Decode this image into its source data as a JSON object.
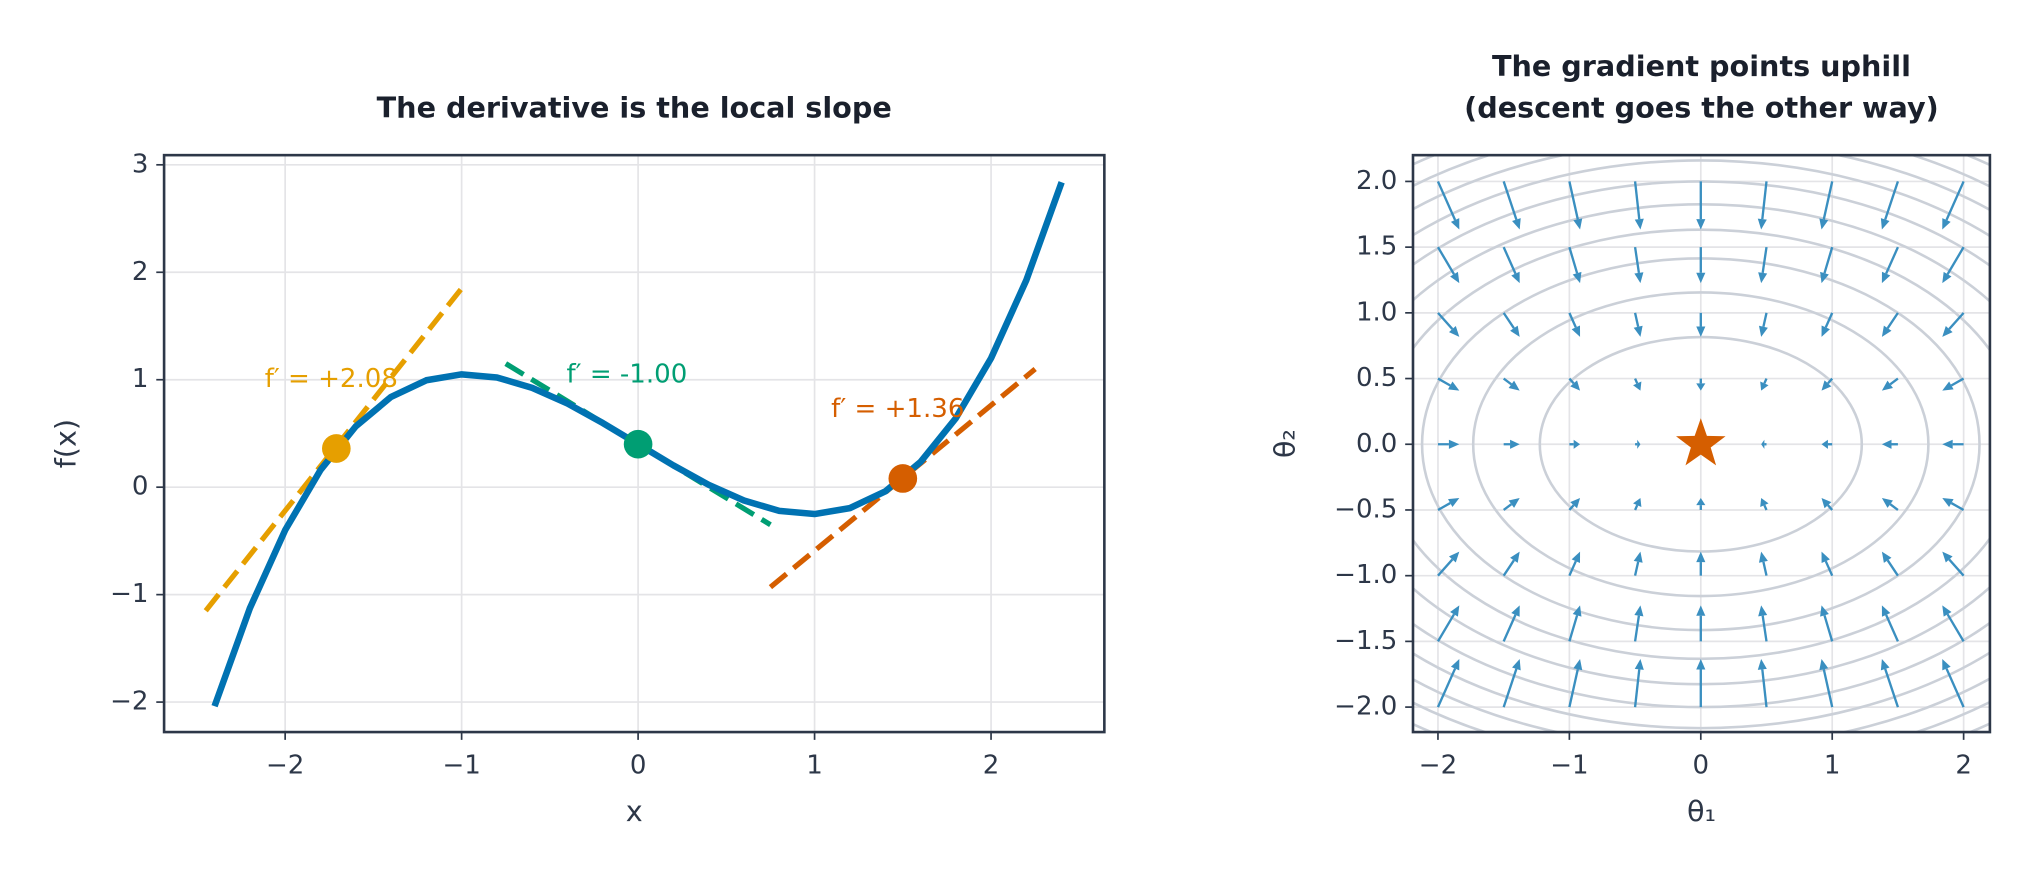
{
  "chart_data": [
    {
      "type": "line",
      "title": "The derivative is the local slope",
      "xlabel": "x",
      "ylabel": "f(x)",
      "xlim": [
        -2.686,
        2.642
      ],
      "ylim": [
        -2.279,
        3.09
      ],
      "xticks": [
        {
          "value": -2,
          "label": "−2"
        },
        {
          "value": -1,
          "label": "−1"
        },
        0,
        1,
        2
      ],
      "yticks": [
        {
          "value": -2,
          "label": "−2"
        },
        {
          "value": -1,
          "label": "−1"
        },
        0,
        1,
        2,
        3
      ],
      "grid": true,
      "series": [
        {
          "color": "#0072b2",
          "x": [
            -2.4,
            -2.2,
            -2.0,
            -1.8,
            -1.6,
            -1.4,
            -1.2,
            -1.0,
            -0.8,
            -0.6,
            -0.4,
            -0.2,
            0,
            0.2,
            0.4,
            0.6,
            0.8,
            1.0,
            1.2,
            1.4,
            1.6,
            1.8,
            2.0,
            2.2,
            2.4
          ],
          "values": [
            -2.038,
            -1.127,
            -0.4,
            0.159,
            0.566,
            0.84,
            0.995,
            1.05,
            1.021,
            0.924,
            0.778,
            0.597,
            0.4,
            0.203,
            0.022,
            -0.124,
            -0.221,
            -0.25,
            -0.195,
            -0.04,
            0.234,
            0.641,
            1.2,
            1.927,
            2.838
          ]
        }
      ],
      "tangents": [
        {
          "color": "#e69f00",
          "x": [
            -2.45,
            -1.0
          ],
          "values": [
            -1.15,
            1.85
          ]
        },
        {
          "color": "#009e73",
          "x": [
            -0.75,
            0.75
          ],
          "values": [
            1.15,
            -0.35
          ]
        },
        {
          "color": "#d55e00",
          "x": [
            0.75,
            2.25
          ],
          "values": [
            -0.93,
            1.1
          ]
        }
      ],
      "points": {
        "x": [
          -1.71,
          0,
          1.5
        ],
        "values": [
          0.36,
          0.4,
          0.081
        ],
        "colors": [
          "#e69f00",
          "#009e73",
          "#d55e00"
        ]
      },
      "annotations": [
        "f′ = +2.08",
        "f′ = -1.00",
        "f′ = +1.36"
      ]
    },
    {
      "type": "quiver",
      "title": [
        "The gradient points uphill",
        "(descent goes the other way)"
      ],
      "xlabel": "θ₁",
      "ylabel": "θ₂",
      "xlim": [
        -2.19,
        2.2
      ],
      "ylim": [
        -2.19,
        2.2
      ],
      "xticks": [
        {
          "value": -2,
          "label": "−2"
        },
        {
          "value": -1,
          "label": "−1"
        },
        0,
        1,
        2
      ],
      "yticks": [
        {
          "value": -2,
          "label": "−2.0"
        },
        {
          "value": -1.5,
          "label": "−1.5"
        },
        {
          "value": -1,
          "label": "−1.0"
        },
        {
          "value": -0.5,
          "label": "−0.5"
        },
        {
          "value": 0,
          "label": "0.0"
        },
        0.5,
        {
          "value": 1,
          "label": "1.0"
        },
        1.5,
        {
          "value": 2,
          "label": "2.0"
        }
      ],
      "grid": true,
      "color": "#3a8fc0",
      "x": [
        -2,
        -1.5,
        -1,
        -0.5,
        0,
        0.5,
        1,
        1.5,
        2
      ],
      "y": [
        -2,
        -1.5,
        -1,
        -0.5,
        0,
        0.5,
        1,
        1.5,
        2
      ],
      "u": [
        4,
        3,
        2,
        1,
        0,
        -1,
        -2,
        -3,
        -4
      ],
      "v": [
        9,
        6.75,
        4.5,
        2.25,
        0,
        -2.25,
        -4.5,
        -6.75,
        -9
      ],
      "contour_color": "#cbd0d8",
      "contours": [
        {
          "rx": 1.225,
          "ry": 0.816
        },
        {
          "rx": 1.732,
          "ry": 1.155
        },
        {
          "rx": 2.121,
          "ry": 1.414
        },
        {
          "rx": 2.449,
          "ry": 1.633
        },
        {
          "rx": 2.739,
          "ry": 1.826
        },
        {
          "rx": 3,
          "ry": 2
        },
        {
          "rx": 3.24,
          "ry": 2.16
        },
        {
          "rx": 3.464,
          "ry": 2.309
        },
        {
          "rx": 3.674,
          "ry": 2.449
        },
        {
          "rx": 3.873,
          "ry": 2.582
        }
      ],
      "marker": {
        "x": 0,
        "y": 0,
        "color": "#d55e00"
      }
    }
  ]
}
